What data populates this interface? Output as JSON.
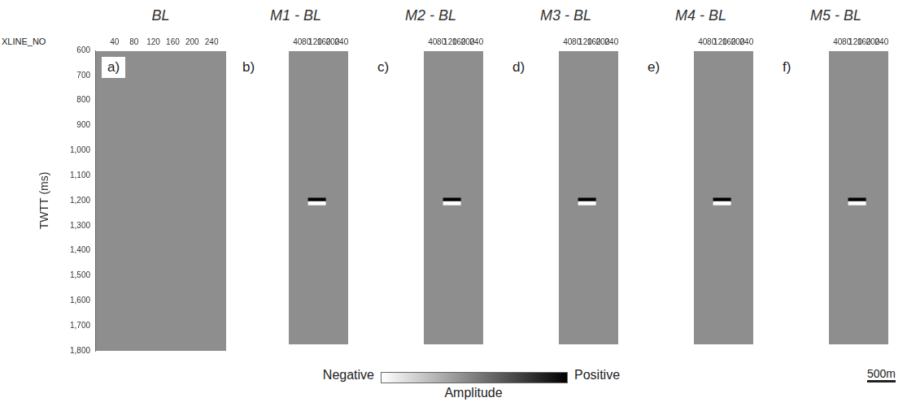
{
  "chart_data": [
    {
      "type": "scatter",
      "title": "BL",
      "panel": "a)",
      "x_label": "XLINE_NO",
      "y_label": "TWTT (ms)",
      "xlim": [
        0,
        270
      ],
      "xticks": [
        40,
        80,
        120,
        160,
        200,
        240
      ],
      "ylim": [
        600,
        1800
      ],
      "yticks": [
        600,
        700,
        800,
        900,
        1000,
        1100,
        1200,
        1300,
        1400,
        1500,
        1600,
        1700,
        1800
      ],
      "tick_labels": true,
      "grid": false,
      "marker": "line",
      "x": [],
      "values": [],
      "colors": []
    },
    {
      "type": "scatter",
      "title": "M1 - BL",
      "panel": "b)",
      "xlim": [
        0,
        270
      ],
      "xticks": [
        40,
        80,
        120,
        160,
        200,
        240
      ],
      "ylim": [
        600,
        1800
      ],
      "yticks": [
        600,
        700,
        800,
        900,
        1000,
        1100,
        1200,
        1300,
        1400,
        1500,
        1600,
        1700,
        1800
      ],
      "tick_labels": "x",
      "grid": false,
      "marker": "line",
      "x": [
        128,
        128
      ],
      "values": [
        1210,
        1224
      ],
      "colors": [
        "#000000",
        "#ffffff"
      ]
    },
    {
      "type": "scatter",
      "title": "M2 - BL",
      "panel": "c)",
      "xlim": [
        0,
        270
      ],
      "xticks": [
        40,
        80,
        120,
        160,
        200,
        240
      ],
      "ylim": [
        600,
        1800
      ],
      "yticks": [
        600,
        700,
        800,
        900,
        1000,
        1100,
        1200,
        1300,
        1400,
        1500,
        1600,
        1700,
        1800
      ],
      "tick_labels": "x",
      "grid": false,
      "marker": "line",
      "x": [
        128,
        128
      ],
      "values": [
        1210,
        1224
      ],
      "colors": [
        "#000000",
        "#ffffff"
      ]
    },
    {
      "type": "scatter",
      "title": "M3 - BL",
      "panel": "d)",
      "xlim": [
        0,
        270
      ],
      "xticks": [
        40,
        80,
        120,
        160,
        200,
        240
      ],
      "ylim": [
        600,
        1800
      ],
      "yticks": [
        600,
        700,
        800,
        900,
        1000,
        1100,
        1200,
        1300,
        1400,
        1500,
        1600,
        1700,
        1800
      ],
      "tick_labels": "x",
      "grid": false,
      "marker": "line",
      "x": [
        128,
        128
      ],
      "values": [
        1210,
        1224
      ],
      "colors": [
        "#000000",
        "#ffffff"
      ]
    },
    {
      "type": "scatter",
      "title": "M4 - BL",
      "panel": "e)",
      "xlim": [
        0,
        270
      ],
      "xticks": [
        40,
        80,
        120,
        160,
        200,
        240
      ],
      "ylim": [
        600,
        1800
      ],
      "yticks": [
        600,
        700,
        800,
        900,
        1000,
        1100,
        1200,
        1300,
        1400,
        1500,
        1600,
        1700,
        1800
      ],
      "tick_labels": "x",
      "grid": false,
      "marker": "line",
      "x": [
        128,
        128
      ],
      "values": [
        1210,
        1224
      ],
      "colors": [
        "#000000",
        "#ffffff"
      ]
    },
    {
      "type": "scatter",
      "title": "M5 - BL",
      "panel": "f)",
      "xlim": [
        0,
        270
      ],
      "xticks": [
        40,
        80,
        120,
        160,
        200,
        240
      ],
      "ylim": [
        600,
        1800
      ],
      "yticks": [
        600,
        700,
        800,
        900,
        1000,
        1100,
        1200,
        1300,
        1400,
        1500,
        1600,
        1700,
        1800
      ],
      "tick_labels": "x",
      "grid": false,
      "marker": "line",
      "x": [
        128,
        128
      ],
      "values": [
        1210,
        1224
      ],
      "colors": [
        "#000000",
        "#ffffff"
      ]
    }
  ],
  "colorbar": {
    "left": "Negative",
    "right": "Positive",
    "label": "Amplitude"
  },
  "scale_bar": "500m"
}
